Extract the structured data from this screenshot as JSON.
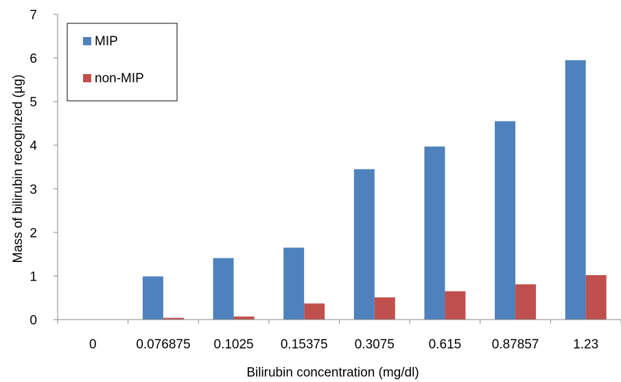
{
  "chart_data": {
    "type": "bar",
    "categories": [
      "0",
      "0.076875",
      "0.1025",
      "0.15375",
      "0.3075",
      "0.615",
      "0.87857",
      "1.23"
    ],
    "series": [
      {
        "name": "MIP",
        "color": "#4F81BD",
        "values": [
          0,
          0.99,
          1.41,
          1.65,
          3.45,
          3.97,
          4.55,
          5.95
        ]
      },
      {
        "name": "non-MIP",
        "color": "#C0504D",
        "values": [
          0,
          0.04,
          0.07,
          0.37,
          0.51,
          0.65,
          0.81,
          1.02
        ]
      }
    ],
    "xlabel": "Bilirubin concentration (mg/dl)",
    "ylabel": "Mass of bilirubin recognized (µg)",
    "ylim": [
      0,
      7
    ],
    "yticks": [
      "0",
      "1",
      "2",
      "3",
      "4",
      "5",
      "6",
      "7"
    ],
    "grid": false,
    "legend_position": "top-left"
  }
}
